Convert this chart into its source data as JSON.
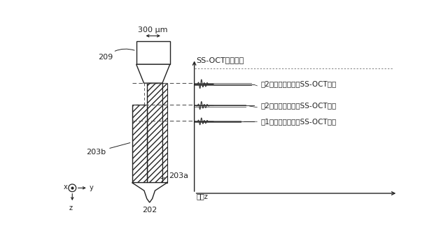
{
  "label_209": "209",
  "label_202": "202",
  "label_203a": "203a",
  "label_203b": "203b",
  "label_300um": "300 μm",
  "label_ss_oct_strength": "SS-OCT信号強度",
  "label_position_z": "位置z",
  "label_signal1": "第2シート材からのSS-OCT信号",
  "label_signal2": "第2シート材からのSS-OCT信号",
  "label_signal3": "第1シート材からのSS-OCT信号",
  "lc": "#222222",
  "dc": "#555555",
  "font_size": 8,
  "font_size_label": 7.5,
  "font_size_small": 7,
  "font_size_axis_label": 7
}
